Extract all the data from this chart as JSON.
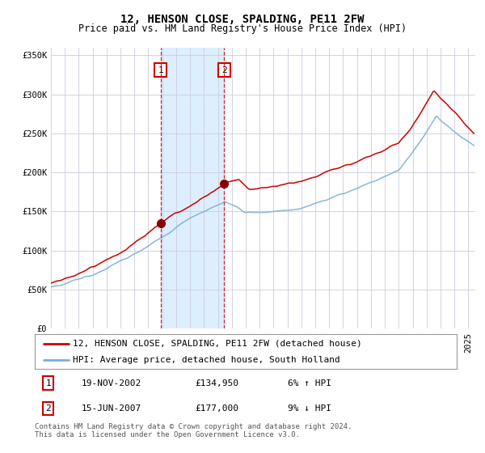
{
  "title": "12, HENSON CLOSE, SPALDING, PE11 2FW",
  "subtitle": "Price paid vs. HM Land Registry's House Price Index (HPI)",
  "ylim": [
    0,
    360000
  ],
  "xlim_start": 1995.0,
  "xlim_end": 2025.5,
  "yticks": [
    0,
    50000,
    100000,
    150000,
    200000,
    250000,
    300000,
    350000
  ],
  "ytick_labels": [
    "£0",
    "£50K",
    "£100K",
    "£150K",
    "£200K",
    "£250K",
    "£300K",
    "£350K"
  ],
  "transaction1": {
    "date_num": 2002.885,
    "price": 134950,
    "label": "1",
    "date_str": "19-NOV-2002",
    "hpi_change": "6% ↑ HPI"
  },
  "transaction2": {
    "date_num": 2007.45,
    "price": 177000,
    "label": "2",
    "date_str": "15-JUN-2007",
    "hpi_change": "9% ↓ HPI"
  },
  "line_red_color": "#cc0000",
  "line_blue_color": "#7aafd4",
  "shaded_region_color": "#ddeeff",
  "vline_color": "#cc0000",
  "dot_color": "#880000",
  "grid_color": "#ccccdd",
  "background_color": "#ffffff",
  "legend_line1": "12, HENSON CLOSE, SPALDING, PE11 2FW (detached house)",
  "legend_line2": "HPI: Average price, detached house, South Holland",
  "footer": "Contains HM Land Registry data © Crown copyright and database right 2024.\nThis data is licensed under the Open Government Licence v3.0.",
  "title_fontsize": 10,
  "subtitle_fontsize": 8.5,
  "tick_fontsize": 7.5,
  "legend_fontsize": 8,
  "footer_fontsize": 6.5,
  "table_fontsize": 8
}
